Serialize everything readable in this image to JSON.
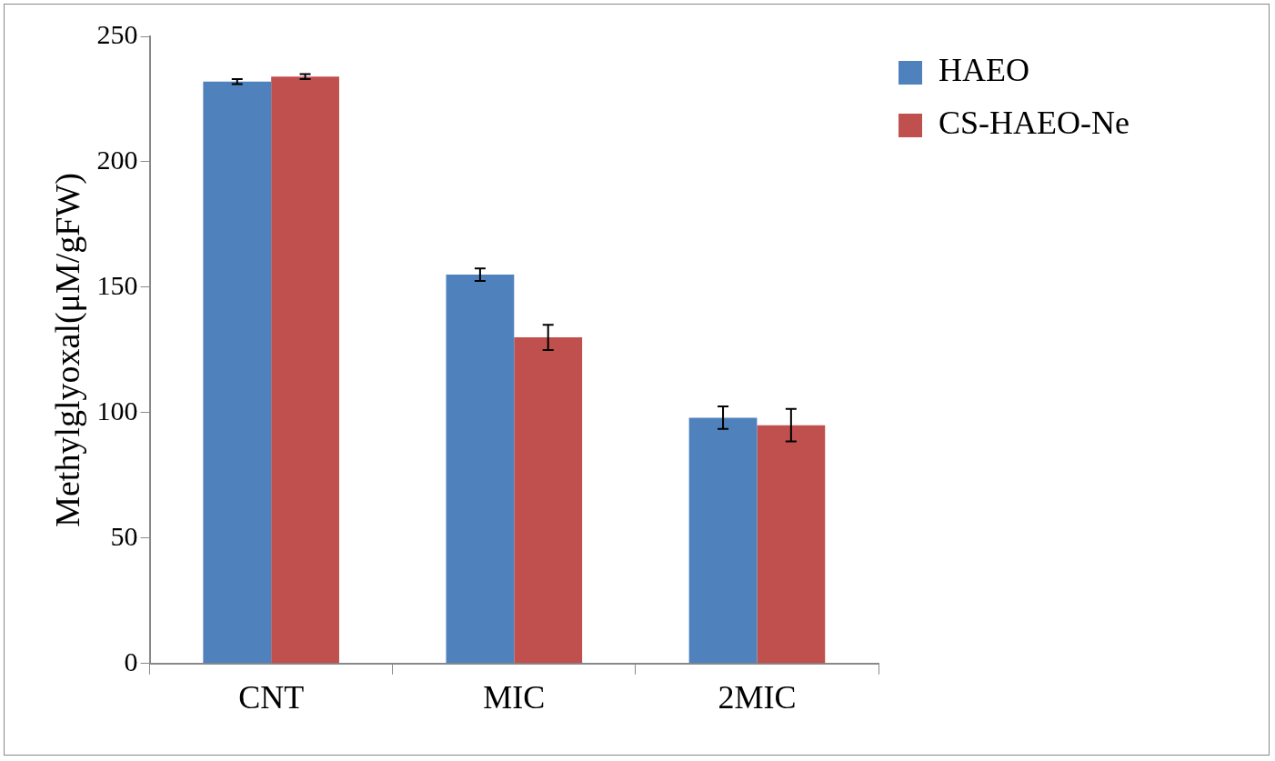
{
  "chart_data": {
    "type": "bar",
    "ylabel": "Methylglyoxal(μM/gFW)",
    "categories": [
      "CNT",
      "MIC",
      "2MIC"
    ],
    "series": [
      {
        "name": "HAEO",
        "color": "#4f81bd",
        "values": [
          232,
          155,
          98
        ],
        "errors": [
          1,
          2.5,
          4.5
        ]
      },
      {
        "name": "CS-HAEO-Ne",
        "color": "#c0504d",
        "values": [
          234,
          130,
          95
        ],
        "errors": [
          1,
          5,
          6.5
        ]
      }
    ],
    "ylim": [
      0,
      250
    ],
    "yticks": [
      0,
      50,
      100,
      150,
      200,
      250
    ],
    "legend": "right"
  }
}
